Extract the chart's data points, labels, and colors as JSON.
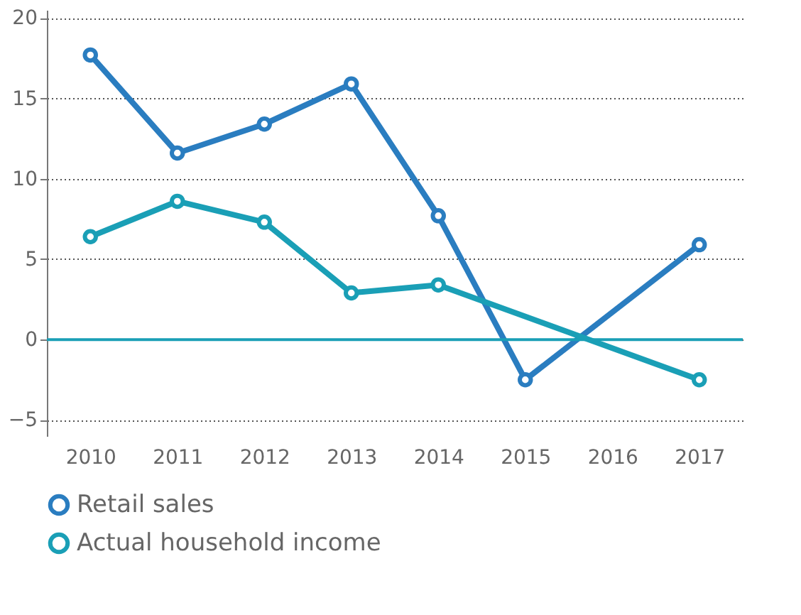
{
  "chart_data": {
    "type": "line",
    "series": [
      {
        "name": "Retail sales",
        "color": "#2a7dc0",
        "x": [
          2010,
          2011,
          2012,
          2013,
          2014,
          2015,
          2017
        ],
        "values": [
          17.7,
          11.6,
          13.4,
          15.9,
          7.7,
          -2.5,
          5.9
        ]
      },
      {
        "name": "Actual household income",
        "color": "#1a9fb6",
        "x": [
          2010,
          2011,
          2012,
          2013,
          2014,
          2017
        ],
        "values": [
          6.4,
          8.6,
          7.3,
          2.9,
          3.4,
          -2.5
        ]
      }
    ],
    "xlim": [
      2009.5,
      2017.5
    ],
    "xticks": [
      2010,
      2011,
      2012,
      2013,
      2014,
      2015,
      2016,
      2017
    ],
    "ylim": [
      -6,
      20.5
    ],
    "yticks": [
      -5,
      0,
      5,
      10,
      15,
      20
    ],
    "ref_lines": [
      {
        "axis": "y",
        "value": 0,
        "color": "#1a9fb6"
      }
    ],
    "grid": "y",
    "legend": "bottom left",
    "marker": "circle",
    "line_style": "solid"
  }
}
